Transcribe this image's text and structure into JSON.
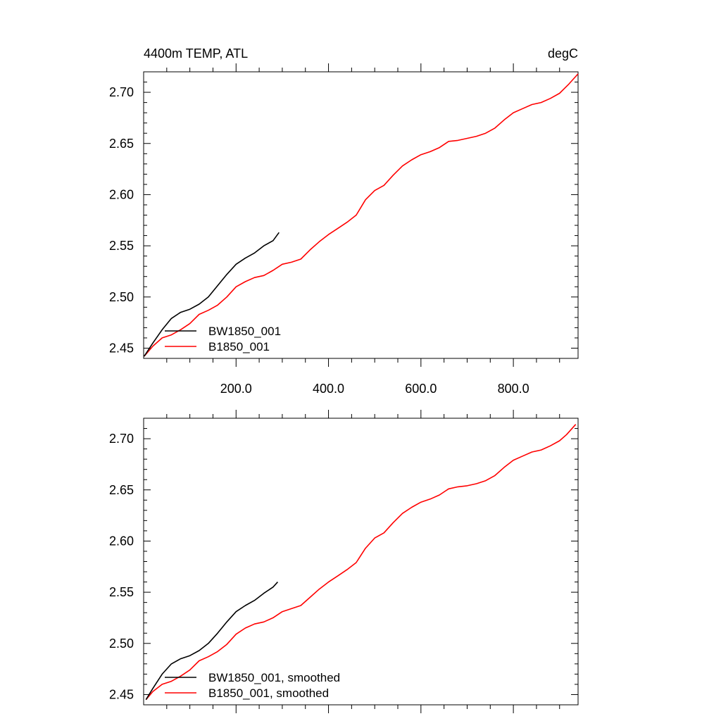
{
  "chart_data": [
    {
      "type": "line",
      "title": "4400m TEMP, ATL",
      "units": "degC",
      "xlabel": "",
      "ylabel": "",
      "xlim": [
        0,
        940
      ],
      "ylim": [
        2.44,
        2.72
      ],
      "xticks": [
        200,
        400,
        600,
        800
      ],
      "xtick_labels": [
        "200.0",
        "400.0",
        "600.0",
        "800.0"
      ],
      "yticks": [
        2.45,
        2.5,
        2.55,
        2.6,
        2.65,
        2.7
      ],
      "ytick_labels": [
        "2.45",
        "2.50",
        "2.55",
        "2.60",
        "2.65",
        "2.70"
      ],
      "grid": false,
      "legend_position": "bottom-left",
      "series": [
        {
          "name": "BW1850_001",
          "color": "#000000",
          "x": [
            1,
            20,
            40,
            60,
            80,
            100,
            120,
            140,
            160,
            180,
            200,
            220,
            240,
            260,
            280,
            293
          ],
          "y": [
            2.442,
            2.455,
            2.468,
            2.479,
            2.485,
            2.488,
            2.493,
            2.5,
            2.511,
            2.522,
            2.532,
            2.538,
            2.543,
            2.55,
            2.555,
            2.563
          ]
        },
        {
          "name": "B1850_001",
          "color": "#ff0000",
          "x": [
            1,
            20,
            40,
            60,
            80,
            100,
            120,
            140,
            160,
            180,
            200,
            220,
            240,
            260,
            280,
            300,
            320,
            340,
            360,
            380,
            400,
            420,
            440,
            460,
            480,
            500,
            520,
            540,
            560,
            580,
            600,
            620,
            640,
            660,
            680,
            700,
            720,
            740,
            760,
            780,
            800,
            820,
            840,
            860,
            880,
            900,
            920,
            940
          ],
          "y": [
            2.442,
            2.452,
            2.46,
            2.463,
            2.468,
            2.474,
            2.483,
            2.487,
            2.492,
            2.5,
            2.51,
            2.515,
            2.519,
            2.521,
            2.526,
            2.532,
            2.534,
            2.537,
            2.546,
            2.554,
            2.561,
            2.567,
            2.573,
            2.58,
            2.595,
            2.604,
            2.609,
            2.619,
            2.628,
            2.634,
            2.639,
            2.642,
            2.646,
            2.652,
            2.653,
            2.655,
            2.657,
            2.66,
            2.665,
            2.673,
            2.68,
            2.684,
            2.688,
            2.69,
            2.694,
            2.699,
            2.708,
            2.718
          ]
        }
      ]
    },
    {
      "type": "line",
      "title": "",
      "units": "",
      "xlabel": "",
      "ylabel": "",
      "xlim": [
        0,
        940
      ],
      "ylim": [
        2.44,
        2.72
      ],
      "xticks": [
        200,
        400,
        600,
        800
      ],
      "xtick_labels": [],
      "yticks": [
        2.45,
        2.5,
        2.55,
        2.6,
        2.65,
        2.7
      ],
      "ytick_labels": [
        "2.45",
        "2.50",
        "2.55",
        "2.60",
        "2.65",
        "2.70"
      ],
      "grid": false,
      "legend_position": "bottom-left",
      "series": [
        {
          "name": "BW1850_001, smoothed",
          "color": "#000000",
          "x": [
            5,
            20,
            40,
            60,
            80,
            100,
            120,
            140,
            160,
            180,
            200,
            220,
            240,
            260,
            280,
            290
          ],
          "y": [
            2.445,
            2.456,
            2.47,
            2.48,
            2.485,
            2.488,
            2.493,
            2.5,
            2.51,
            2.521,
            2.531,
            2.537,
            2.542,
            2.549,
            2.555,
            2.56
          ]
        },
        {
          "name": "B1850_001, smoothed",
          "color": "#ff0000",
          "x": [
            5,
            20,
            40,
            60,
            80,
            100,
            120,
            140,
            160,
            180,
            200,
            220,
            240,
            260,
            280,
            300,
            320,
            340,
            360,
            380,
            400,
            420,
            440,
            460,
            480,
            500,
            520,
            540,
            560,
            580,
            600,
            620,
            640,
            660,
            680,
            700,
            720,
            740,
            760,
            780,
            800,
            820,
            840,
            860,
            880,
            900,
            915,
            935
          ],
          "y": [
            2.445,
            2.453,
            2.46,
            2.463,
            2.468,
            2.474,
            2.483,
            2.487,
            2.492,
            2.499,
            2.509,
            2.515,
            2.519,
            2.521,
            2.525,
            2.531,
            2.534,
            2.537,
            2.545,
            2.553,
            2.56,
            2.566,
            2.572,
            2.579,
            2.593,
            2.603,
            2.608,
            2.618,
            2.627,
            2.633,
            2.638,
            2.641,
            2.645,
            2.651,
            2.653,
            2.654,
            2.656,
            2.659,
            2.664,
            2.672,
            2.679,
            2.683,
            2.687,
            2.689,
            2.693,
            2.698,
            2.704,
            2.714
          ]
        }
      ]
    }
  ]
}
